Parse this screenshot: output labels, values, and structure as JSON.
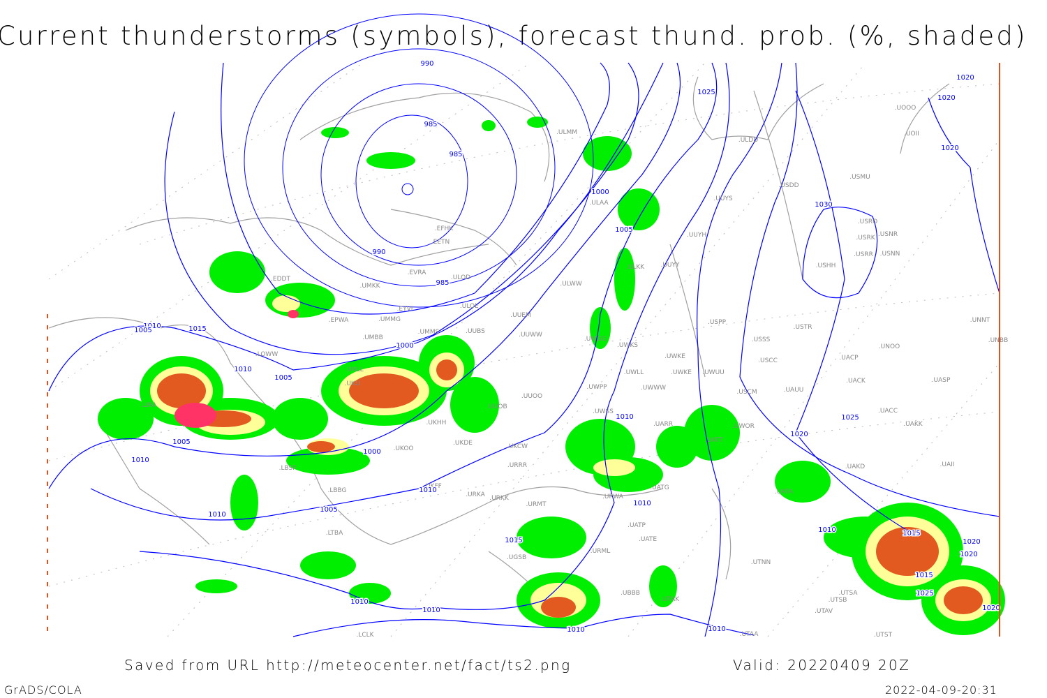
{
  "title": "Current thunderstorms (symbols), forecast thund. prob. (%, shaded)",
  "footer": {
    "saved_from": "Saved from URL http://meteocenter.net/fact/ts2.png",
    "valid": "Valid: 20220409 20Z",
    "software": "GrADS/COLA",
    "timestamp": "2022-04-09-20:31"
  },
  "colors": {
    "isobar": "#0000ff",
    "coastline": "#a0a0a0",
    "prob_low": "#00ee00",
    "prob_mid": "#ffff99",
    "prob_high": "#e35a20",
    "prob_max": "#ff3366",
    "border": "#e05020"
  },
  "isobar_labels": [
    "990",
    "985",
    "985",
    "990",
    "985",
    "1000",
    "1005",
    "1025",
    "1020",
    "1020",
    "1020",
    "1030",
    "1010",
    "1005",
    "1015",
    "1010",
    "1005",
    "1000",
    "1000",
    "1005",
    "1010",
    "1010",
    "1005",
    "1010",
    "1015",
    "1010",
    "1010",
    "1010",
    "1010",
    "1010",
    "1010",
    "1020",
    "1025",
    "1010",
    "1015",
    "1020",
    "1020",
    "1015",
    "1025",
    "1020"
  ],
  "stations": [
    "ULMM",
    "ULDD",
    "USDD",
    "USMU",
    "UOII",
    "UOOO",
    "ULAA",
    "UUYS",
    "USRO",
    "USNR",
    "USRK",
    "USRR",
    "USNN",
    "USHH",
    "UUYH",
    "ULKK",
    "UUYY",
    "ULWW",
    "EFHK",
    "EETN",
    "EVRA",
    "ULOD",
    "UMKK",
    "EDDT",
    "EYVI",
    "ULOL",
    "UMMG",
    "EPWA",
    "UUEM",
    "UMMS",
    "UUBS",
    "UMBB",
    "UUWW",
    "UWGG",
    "UWKS",
    "USPP",
    "USTR",
    "USSS",
    "UNOO",
    "UNNT",
    "UNBB",
    "UWKE",
    "UWKE",
    "UWUU",
    "USCC",
    "UACP",
    "UACK",
    "UASP",
    "UKLL",
    "UKLI",
    "LOWW",
    "UWLL",
    "UWWW",
    "UWPP",
    "USCM",
    "UAUU",
    "UUOO",
    "UUOB",
    "UWSS",
    "UATT",
    "UARR",
    "UWOR",
    "UACC",
    "UAKK",
    "UKHH",
    "UKOO",
    "UKDE",
    "UKCW",
    "URRR",
    "UAKD",
    "UAII",
    "LIRA",
    "LBSF",
    "LBBG",
    "UKFF",
    "URKA",
    "URKK",
    "URMT",
    "UATG",
    "URWA",
    "UATA",
    "UATE",
    "UATP",
    "URML",
    "UTNN",
    "LTBA",
    "UGSB",
    "UBBB",
    "UTAK",
    "UTSA",
    "UTSB",
    "UTAV",
    "UTST",
    "UTAA",
    "LCLK"
  ]
}
